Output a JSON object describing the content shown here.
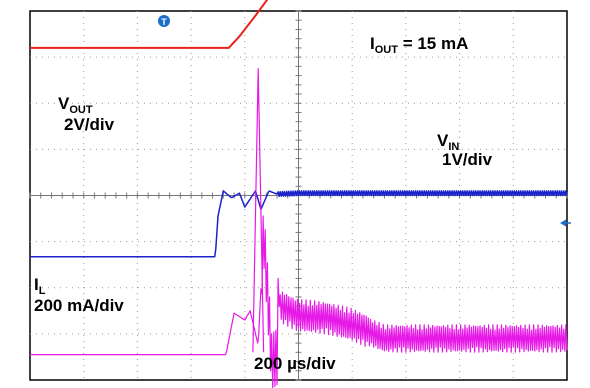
{
  "chart_data": {
    "type": "line",
    "title": "",
    "xlabel": "200 µs/div",
    "ylabel": "",
    "grid": true,
    "divisions": {
      "x": 10,
      "y": 8
    },
    "trigger_marker": "T",
    "reference_marker": "arrow-left-icon",
    "annotations": {
      "iout": {
        "main": "I",
        "sub": "OUT",
        "rest": " = 15 mA"
      },
      "vout": {
        "main": "V",
        "sub": "OUT",
        "scale": "2V/div"
      },
      "vin": {
        "main": "V",
        "sub": "IN",
        "scale": "1V/div"
      },
      "il": {
        "main": "I",
        "sub": "L",
        "scale": "200 mA/div"
      },
      "timebase": "200 µs/div"
    },
    "series": [
      {
        "name": "V_OUT",
        "color": "#e8231a",
        "x_div": [
          0,
          3.7,
          3.9,
          4.2,
          4.45,
          4.7,
          5.0,
          5.5,
          6.0,
          6.5,
          7.0,
          7.5,
          8.0,
          8.5,
          9.0,
          10
        ],
        "y_div": [
          3.2,
          3.2,
          3.45,
          3.9,
          4.3,
          4.62,
          4.88,
          5.2,
          5.43,
          5.6,
          5.7,
          5.74,
          5.76,
          5.77,
          5.77,
          5.77
        ]
      },
      {
        "name": "V_IN",
        "color": "#1a22cc",
        "x_div": [
          0,
          3.45,
          3.5,
          3.6,
          3.75,
          3.9,
          4.0,
          4.2,
          4.3,
          4.45,
          4.6,
          5.0,
          10
        ],
        "y_div": [
          -1.33,
          -1.33,
          -0.45,
          0.1,
          -0.05,
          0.05,
          -0.25,
          0.1,
          -0.3,
          0.1,
          0.03,
          0.05,
          0.05
        ]
      },
      {
        "name": "I_L",
        "color": "#e619e6",
        "x_div": [
          0,
          3.65,
          3.8,
          4.0,
          4.1,
          4.25,
          4.35,
          4.45,
          4.5,
          4.6,
          4.62,
          4.75,
          4.9,
          5.0,
          5.5,
          6.0,
          6.3,
          6.6,
          7.0,
          8.0,
          9.0,
          10
        ],
        "y_div": [
          -3.45,
          -3.45,
          -2.55,
          -2.7,
          -2.5,
          -3.25,
          -0.8,
          -2.6,
          -3.6,
          -3.5,
          -2.4,
          -2.45,
          -2.55,
          -2.6,
          -2.65,
          -2.8,
          -2.95,
          -3.1,
          -3.1,
          -3.1,
          -3.1,
          -3.1
        ]
      }
    ],
    "il_spike": {
      "x_div": [
        4.15,
        4.25,
        4.35
      ],
      "y_div": [
        -3.4,
        2.75,
        -3.4
      ]
    },
    "il_ripple_amplitude_div": 0.35
  }
}
